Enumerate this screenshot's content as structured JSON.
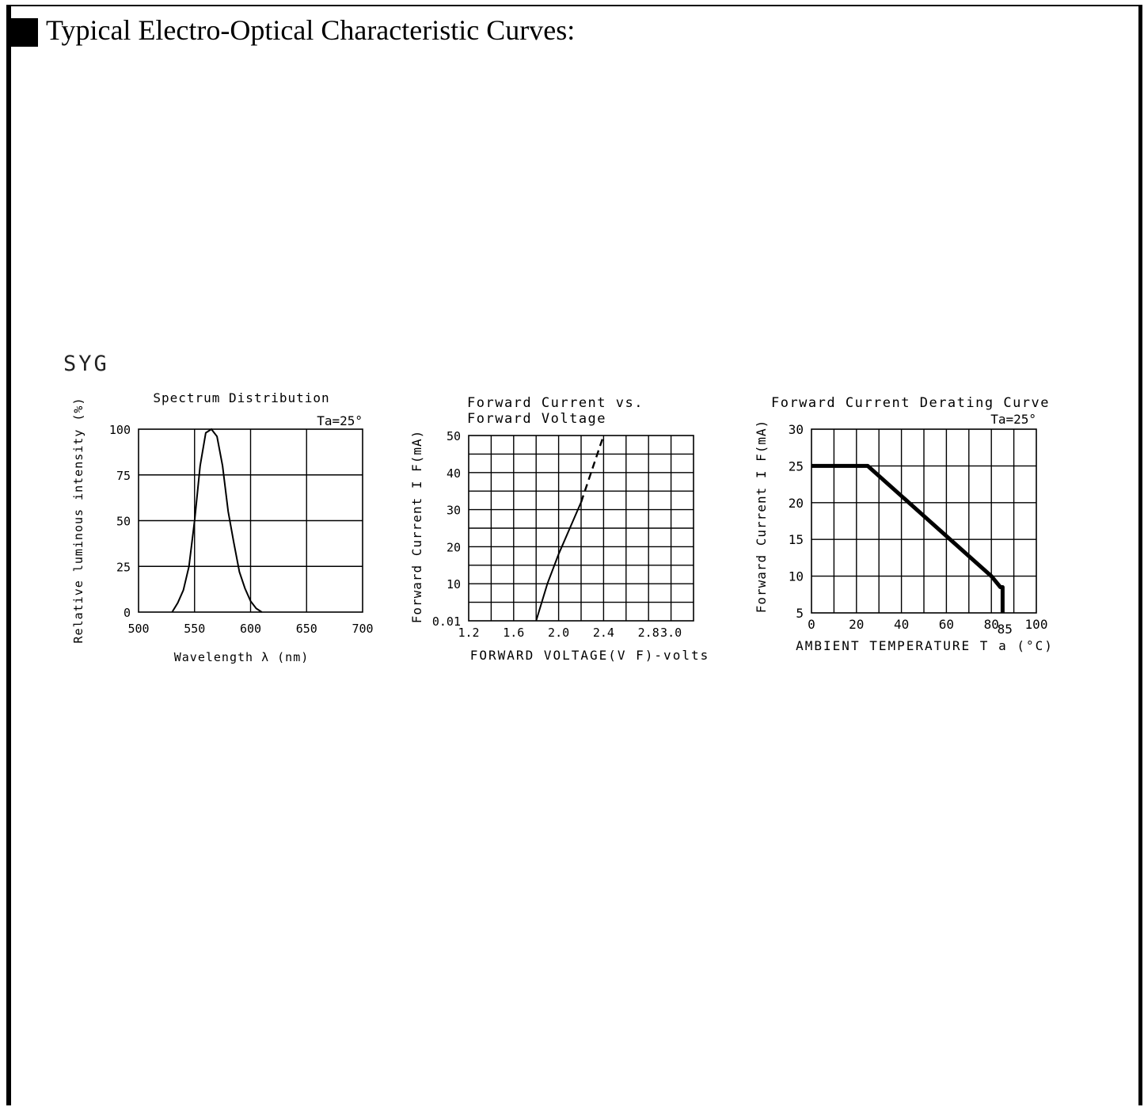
{
  "heading": {
    "title": "Typical Electro-Optical Characteristic Curves:"
  },
  "product_label": "SYG",
  "chart_data": [
    {
      "type": "line",
      "title": "Spectrum Distribution",
      "condition": "Ta=25°",
      "xlabel": "Wavelength λ (nm)",
      "ylabel": "Relative luminous intensity (%)",
      "xlim": [
        500,
        700
      ],
      "ylim": [
        0,
        100
      ],
      "xticks": [
        "500",
        "550",
        "600",
        "650",
        "700"
      ],
      "yticks": [
        "0",
        "25",
        "50",
        "75",
        "100"
      ],
      "series": [
        {
          "x": [
            530,
            535,
            540,
            545,
            550,
            555,
            560,
            565,
            570,
            575,
            580,
            585,
            590,
            595,
            600,
            605,
            610
          ],
          "y": [
            0,
            5,
            12,
            25,
            50,
            80,
            98,
            100,
            96,
            80,
            55,
            38,
            22,
            13,
            6,
            2,
            0
          ]
        }
      ]
    },
    {
      "type": "line",
      "title": "Forward Current vs.",
      "title2": "Forward Voltage",
      "xlabel": "FORWARD VOLTAGE(V F)-volts",
      "ylabel": "Forward Current I F(mA)",
      "xlim": [
        1.2,
        3.2
      ],
      "ylim": [
        0,
        50
      ],
      "xticks": [
        "1.2",
        "1.6",
        "2.0",
        "2.4",
        "2.8",
        "3.0"
      ],
      "yticks": [
        "0.01",
        "10",
        "20",
        "30",
        "40",
        "50"
      ],
      "series": [
        {
          "style": "solid",
          "x": [
            1.8,
            1.85,
            1.9,
            2.0,
            2.1,
            2.2
          ],
          "y": [
            0.01,
            5,
            10,
            18,
            25,
            32
          ]
        },
        {
          "style": "dashed",
          "x": [
            2.2,
            2.3,
            2.4
          ],
          "y": [
            32,
            41,
            50
          ]
        }
      ]
    },
    {
      "type": "line",
      "title": "Forward Current Derating Curve",
      "condition": "Ta=25°",
      "xlabel": "AMBIENT TEMPERATURE T a (°C)",
      "ylabel": "Forward Current I F(mA)",
      "xlim": [
        0,
        100
      ],
      "ylim": [
        5,
        30
      ],
      "xticks": [
        "0",
        "20",
        "40",
        "60",
        "80",
        "100"
      ],
      "xtick_extra": "85",
      "yticks": [
        "5",
        "10",
        "15",
        "20",
        "25",
        "30"
      ],
      "series": [
        {
          "x": [
            0,
            25,
            80,
            84,
            85,
            85
          ],
          "y": [
            25,
            25,
            10,
            8.5,
            8.5,
            5
          ]
        }
      ]
    }
  ]
}
